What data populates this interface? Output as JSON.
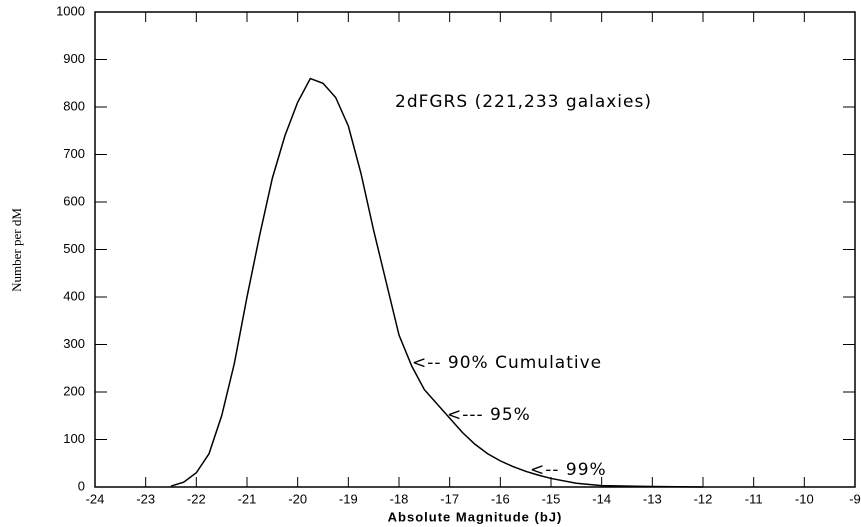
{
  "chart_data": {
    "type": "line",
    "x_label": "Absolute Magnitude (bJ)",
    "y_label": "Number per dM",
    "annotations": [
      "2dFGRS (221,233 galaxies)",
      "<-- 90% Cumulative",
      "<--- 95%",
      "<-- 99%"
    ],
    "x": [
      -22.5,
      -22.25,
      -22,
      -21.75,
      -21.5,
      -21.25,
      -21,
      -20.75,
      -20.5,
      -20.25,
      -20,
      -19.75,
      -19.5,
      -19.25,
      -19,
      -18.75,
      -18.5,
      -18.25,
      -18,
      -17.75,
      -17.5,
      -17.25,
      -17,
      -16.75,
      -16.5,
      -16.25,
      -16,
      -15.75,
      -15.5,
      -15.25,
      -15,
      -14.5,
      -14,
      -13,
      -12
    ],
    "series": [
      {
        "color": "#000000",
        "values": [
          2,
          10,
          30,
          70,
          150,
          260,
          400,
          530,
          650,
          740,
          810,
          860,
          850,
          820,
          760,
          660,
          540,
          430,
          320,
          255,
          205,
          175,
          145,
          115,
          90,
          70,
          55,
          43,
          33,
          25,
          18,
          8,
          3,
          1,
          0
        ]
      }
    ],
    "xlim": [
      -24,
      -9
    ],
    "xticks": [
      -24,
      -23,
      -22,
      -21,
      -20,
      -19,
      -18,
      -17,
      -16,
      -15,
      -14,
      -13,
      -12,
      -11,
      -10,
      -9
    ],
    "ylim": [
      0,
      1000
    ],
    "yticks": [
      0,
      100,
      200,
      300,
      400,
      500,
      600,
      700,
      800,
      900,
      1000
    ]
  }
}
